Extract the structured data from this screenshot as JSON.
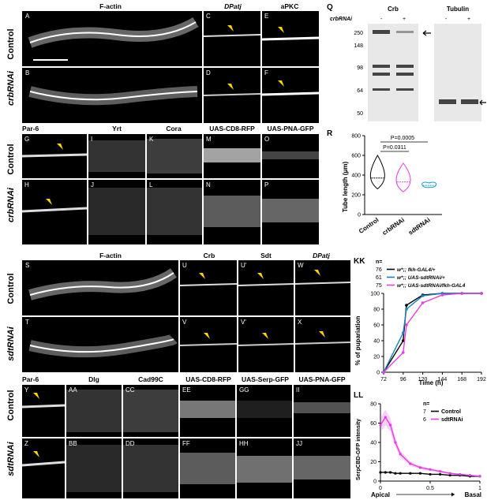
{
  "figure": {
    "top_section": {
      "row1_titles": [
        "F-actin",
        "DPatj",
        "aPKC"
      ],
      "row2_titles": [
        "Par-6",
        "Yrt",
        "Cora",
        "UAS-CD8-RFP",
        "UAS-PNA-GFP"
      ],
      "row_labels": [
        "Control",
        "crbRNAi",
        "Control",
        "crbRNAi"
      ],
      "panel_letters_r1": [
        "A",
        "C",
        "E"
      ],
      "panel_letters_r1b": [
        "B",
        "D",
        "F"
      ],
      "panel_letters_r2": [
        "G",
        "I",
        "K",
        "M",
        "O"
      ],
      "panel_letters_r2b": [
        "H",
        "J",
        "L",
        "N",
        "P"
      ]
    },
    "bottom_section": {
      "row1_titles": [
        "F-actin",
        "Crb",
        "Sdt",
        "DPatj"
      ],
      "row2_titles": [
        "Par-6",
        "Dlg",
        "Cad99C",
        "UAS-CD8-RFP",
        "UAS-Serp-GFP",
        "UAS-PNA-GFP"
      ],
      "row_labels": [
        "Control",
        "sdtRNAi",
        "Control",
        "sdtRNAi"
      ],
      "panel_letters_r1": [
        "S",
        "U",
        "U'",
        "W"
      ],
      "panel_letters_r1b": [
        "T",
        "V",
        "V'",
        "X"
      ],
      "panel_letters_r2": [
        "Y",
        "AA",
        "CC",
        "EE",
        "GG",
        "II"
      ],
      "panel_letters_r2b": [
        "Z",
        "BB",
        "DD",
        "FF",
        "HH",
        "JJ"
      ]
    },
    "panel_Q": {
      "letter": "Q",
      "blot_titles": [
        "Crb",
        "Tubulin"
      ],
      "condition_label": "crbRNAi",
      "lane_signs": [
        "-",
        "+",
        "-",
        "+"
      ],
      "mw_markers": [
        "250",
        "148",
        "98",
        "64",
        "50"
      ]
    },
    "panel_R": {
      "letter": "R",
      "ylabel": "Tube length (μm)",
      "pvalues": [
        "P=0.0311",
        "P=0.0005"
      ],
      "colors": [
        "#000000",
        "#e040e0",
        "#1aa0d0"
      ]
    },
    "panel_KK": {
      "letter": "KK",
      "n_header": "n=",
      "xlabel": "Time (h)",
      "ylabel": "% of pupariation",
      "legend": [
        {
          "n": "76",
          "label": "w*;; fkh-GAL4/+"
        },
        {
          "n": "61",
          "label": "w*;; UAS-sdtRNAi/+"
        },
        {
          "n": "75",
          "label": "w*;; UAS-sdtRNAi/fkh-GAL4"
        }
      ]
    },
    "panel_LL": {
      "letter": "LL",
      "n_header": "n=",
      "ylabel": "SerpCBD-GFP intensity",
      "xlabel_left": "Apical",
      "xlabel_right": "Basal",
      "legend": [
        {
          "n": "7",
          "label": "Control"
        },
        {
          "n": "6",
          "label": "sdtRNAi"
        }
      ]
    }
  },
  "chart_data": [
    {
      "type": "violin",
      "title": "",
      "categories": [
        "Control",
        "crbRNAi",
        "sdtRNAi"
      ],
      "ylabel": "Tube length (μm)",
      "ylim": [
        0,
        800
      ],
      "yticks": [
        0,
        200,
        400,
        600,
        800
      ],
      "medians": [
        370,
        330,
        295
      ],
      "ranges": [
        [
          260,
          600
        ],
        [
          230,
          520
        ],
        [
          275,
          320
        ]
      ]
    },
    {
      "type": "line",
      "title": "",
      "xlabel": "Time (h)",
      "ylabel": "% of pupariation",
      "x": [
        72,
        96,
        100,
        120,
        144,
        168,
        192
      ],
      "xticks": [
        72,
        96,
        120,
        144,
        168,
        192
      ],
      "yticks": [
        0,
        20,
        40,
        60,
        80,
        100
      ],
      "ylim": [
        0,
        100
      ],
      "series": [
        {
          "name": "w*;; fkh-GAL4/+",
          "color": "#000000",
          "values": [
            0,
            40,
            85,
            98,
            100,
            100,
            100
          ]
        },
        {
          "name": "w*;; UAS-sdtRNAi/+",
          "color": "#1a7fc0",
          "values": [
            0,
            50,
            80,
            97,
            100,
            100,
            100
          ]
        },
        {
          "name": "w*;; UAS-sdtRNAi/fkh-GAL4",
          "color": "#e040e0",
          "values": [
            0,
            25,
            60,
            88,
            98,
            100,
            100
          ]
        }
      ]
    },
    {
      "type": "line",
      "title": "",
      "ylabel": "SerpCBD-GFP intensity",
      "x": [
        0.0,
        0.05,
        0.1,
        0.15,
        0.2,
        0.3,
        0.4,
        0.5,
        0.6,
        0.7,
        0.8,
        0.9,
        1.0
      ],
      "xticks": [
        0,
        0.5,
        1.0
      ],
      "yticks": [
        0,
        20,
        40,
        60,
        80
      ],
      "ylim": [
        0,
        80
      ],
      "series": [
        {
          "name": "Control",
          "color": "#000000",
          "values": [
            9,
            9,
            9,
            8,
            8,
            8,
            8,
            7,
            7,
            6,
            6,
            5,
            5
          ]
        },
        {
          "name": "sdtRNAi",
          "color": "#e040e0",
          "values": [
            58,
            66,
            58,
            40,
            28,
            18,
            14,
            12,
            10,
            8,
            7,
            6,
            5
          ]
        }
      ]
    }
  ]
}
